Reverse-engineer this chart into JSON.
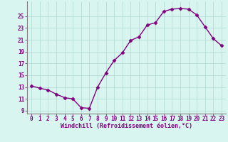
{
  "x": [
    0,
    1,
    2,
    3,
    4,
    5,
    6,
    7,
    8,
    9,
    10,
    11,
    12,
    13,
    14,
    15,
    16,
    17,
    18,
    19,
    20,
    21,
    22,
    23
  ],
  "y": [
    13.2,
    12.8,
    12.5,
    11.8,
    11.2,
    11.0,
    9.5,
    9.4,
    13.0,
    15.4,
    17.5,
    18.8,
    20.9,
    21.5,
    23.5,
    23.9,
    25.8,
    26.2,
    26.3,
    26.2,
    25.2,
    23.2,
    21.2,
    20.0
  ],
  "xlim": [
    -0.5,
    23.5
  ],
  "ylim": [
    8.5,
    27.5
  ],
  "yticks": [
    9,
    11,
    13,
    15,
    17,
    19,
    21,
    23,
    25
  ],
  "xticks": [
    0,
    1,
    2,
    3,
    4,
    5,
    6,
    7,
    8,
    9,
    10,
    11,
    12,
    13,
    14,
    15,
    16,
    17,
    18,
    19,
    20,
    21,
    22,
    23
  ],
  "xlabel": "Windchill (Refroidissement éolien,°C)",
  "line_color": "#800080",
  "marker": "D",
  "bg_color": "#d8f5f0",
  "grid_color": "#aed8d0",
  "tick_color": "#800080",
  "label_color": "#800080",
  "marker_size": 2.5,
  "line_width": 1.0,
  "tick_fontsize": 5.5,
  "xlabel_fontsize": 6.0
}
